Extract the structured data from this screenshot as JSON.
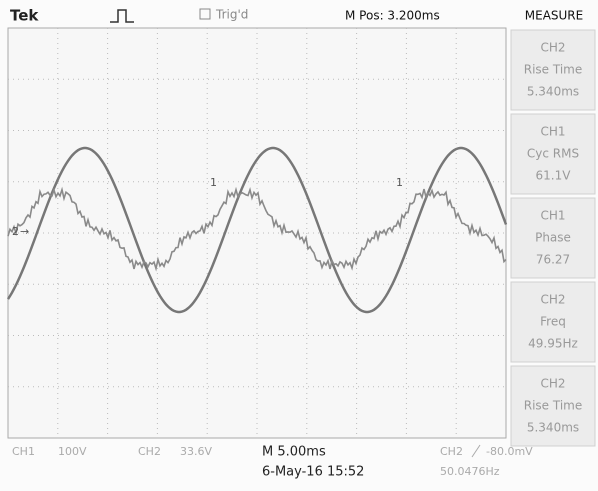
{
  "header": {
    "brand": "Tek",
    "trigger_status": "Trig'd",
    "position": "M Pos: 3.200ms",
    "menu_title": "MEASURE"
  },
  "measurements": [
    {
      "source": "CH2",
      "type": "Rise Time",
      "value": "5.340ms"
    },
    {
      "source": "CH1",
      "type": "Cyc RMS",
      "value": "61.1V"
    },
    {
      "source": "CH1",
      "type": "Phase",
      "value": "76.27"
    },
    {
      "source": "CH2",
      "type": "Freq",
      "value": "49.95Hz"
    },
    {
      "source": "CH2",
      "type": "Rise Time",
      "value": "5.340ms"
    }
  ],
  "markers": {
    "ch2": "2",
    "ch1": "1"
  },
  "footer": {
    "ch1_label": "CH1",
    "ch1_scale": "100V",
    "ch2_label": "CH2",
    "ch2_scale": "33.6V",
    "timebase": "M 5.00ms",
    "datetime": "6-May-16 15:52",
    "trigger_source": "CH2",
    "trigger_level": "-80.0mV",
    "trigger_freq": "50.0476Hz"
  }
}
